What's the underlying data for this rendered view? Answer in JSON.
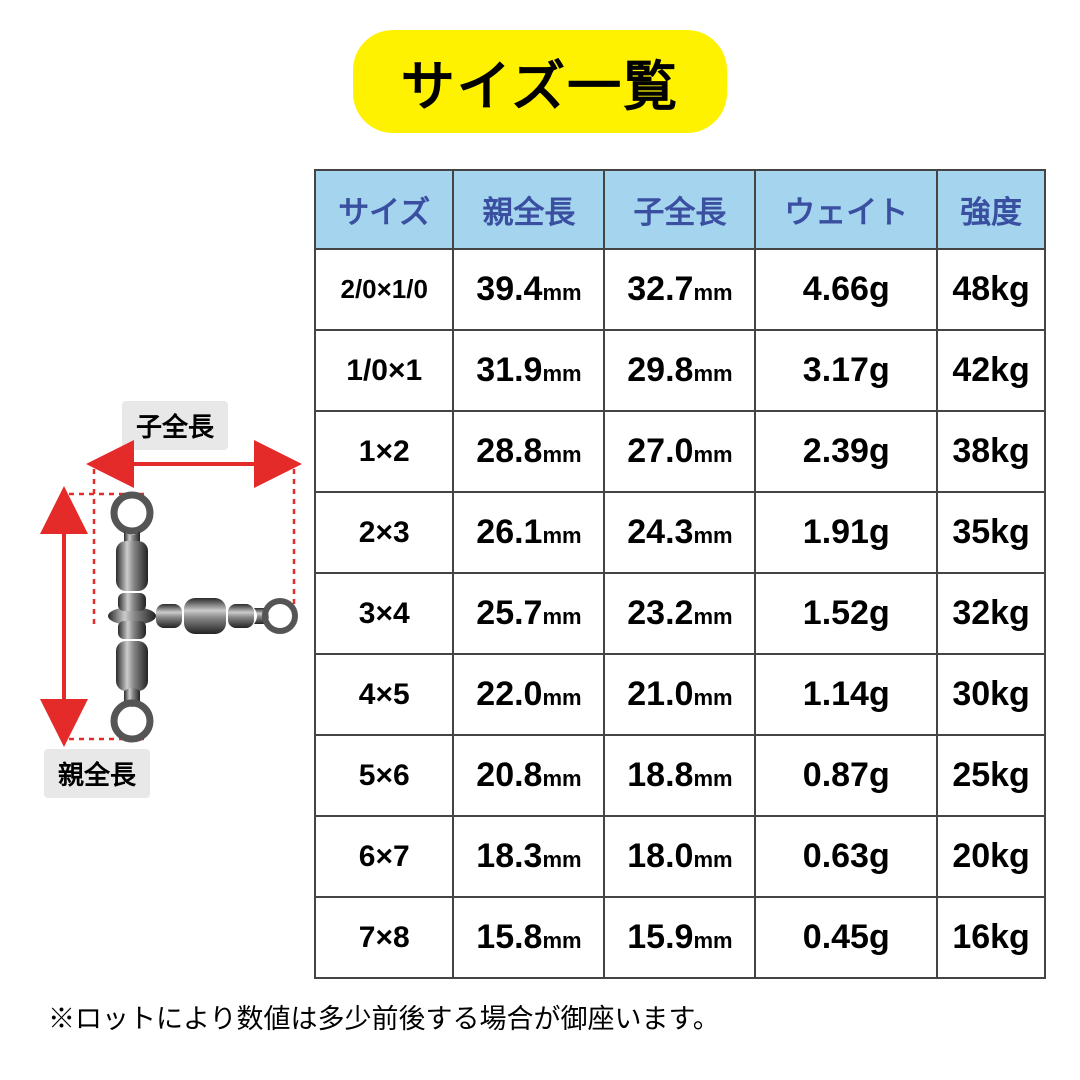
{
  "title": "サイズ一覧",
  "diagram": {
    "label_sub": "子全長",
    "label_main": "親全長",
    "arrow_color": "#e52a2a",
    "dash_color": "#e52a2a",
    "label_bg": "#e8e8e8",
    "swivel_color_dark": "#3a3a3a",
    "swivel_color_mid": "#555555",
    "swivel_color_light": "#cccccc",
    "ring_stroke": "#555555"
  },
  "table": {
    "header_bg": "#a4d4ee",
    "header_text_color": "#3a4fa0",
    "border_color": "#444444",
    "columns": [
      "サイズ",
      "親全長",
      "子全長",
      "ウェイト",
      "強度"
    ],
    "rows": [
      {
        "size": "2/0×1/0",
        "size_small": true,
        "main_len": "39.4",
        "sub_len": "32.7",
        "weight": "4.66g",
        "strength": "48kg"
      },
      {
        "size": "1/0×1",
        "size_small": false,
        "main_len": "31.9",
        "sub_len": "29.8",
        "weight": "3.17g",
        "strength": "42kg"
      },
      {
        "size": "1×2",
        "size_small": false,
        "main_len": "28.8",
        "sub_len": "27.0",
        "weight": "2.39g",
        "strength": "38kg"
      },
      {
        "size": "2×3",
        "size_small": false,
        "main_len": "26.1",
        "sub_len": "24.3",
        "weight": "1.91g",
        "strength": "35kg"
      },
      {
        "size": "3×4",
        "size_small": false,
        "main_len": "25.7",
        "sub_len": "23.2",
        "weight": "1.52g",
        "strength": "32kg"
      },
      {
        "size": "4×5",
        "size_small": false,
        "main_len": "22.0",
        "sub_len": "21.0",
        "weight": "1.14g",
        "strength": "30kg"
      },
      {
        "size": "5×6",
        "size_small": false,
        "main_len": "20.8",
        "sub_len": "18.8",
        "weight": "0.87g",
        "strength": "25kg"
      },
      {
        "size": "6×7",
        "size_small": false,
        "main_len": "18.3",
        "sub_len": "18.0",
        "weight": "0.63g",
        "strength": "20kg"
      },
      {
        "size": "7×8",
        "size_small": false,
        "main_len": "15.8",
        "sub_len": "15.9",
        "weight": "0.45g",
        "strength": "16kg"
      }
    ],
    "mm_unit": "mm"
  },
  "footnote": "※ロットにより数値は多少前後する場合が御座います。"
}
